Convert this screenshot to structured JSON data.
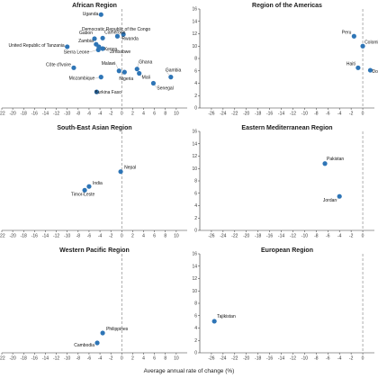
{
  "chart_data": [
    {
      "type": "scatter",
      "title": "African Region",
      "xlim": [
        -22,
        12
      ],
      "ylim": [
        0,
        16
      ],
      "xticks": [
        -22,
        -20,
        -18,
        -16,
        -14,
        -12,
        -10,
        -8,
        -6,
        -4,
        -2,
        0,
        2,
        4,
        6,
        8,
        10
      ],
      "yticks": [],
      "points": [
        {
          "label": "Uganda",
          "x": -3.8,
          "y": 15.1
        },
        {
          "label": "Democratic Republic of the Congo",
          "x": 0.3,
          "y": 11.9
        },
        {
          "label": "Gabon",
          "x": -5.0,
          "y": 11.2
        },
        {
          "label": "Cameroon",
          "x": -3.5,
          "y": 11.3
        },
        {
          "label": "Rwanda",
          "x": -0.8,
          "y": 11.6
        },
        {
          "label": "Zambia",
          "x": -4.7,
          "y": 10.3
        },
        {
          "label": "United Republic of Tanzania",
          "x": -10.0,
          "y": 9.9
        },
        {
          "label": "Kenya",
          "x": -4.2,
          "y": 9.9
        },
        {
          "label": "Sierra Leone",
          "x": -4.3,
          "y": 9.4
        },
        {
          "label": "Zimbabwe",
          "x": -3.5,
          "y": 9.6
        },
        {
          "label": "Côte d'Ivoire",
          "x": -8.8,
          "y": 6.5
        },
        {
          "label": "Malawi",
          "x": -0.5,
          "y": 6.0
        },
        {
          "label": "Ghana",
          "x": 2.8,
          "y": 6.3
        },
        {
          "label": "Mozambique",
          "x": -3.8,
          "y": 5.0
        },
        {
          "label": "Nigeria",
          "x": 0.5,
          "y": 5.8
        },
        {
          "label": "Mali",
          "x": 3.2,
          "y": 5.6
        },
        {
          "label": "Gambia",
          "x": 9.0,
          "y": 5.0
        },
        {
          "label": "Senegal",
          "x": 5.8,
          "y": 4.0
        },
        {
          "label": "Burkina Faso",
          "x": -4.6,
          "y": 2.6
        }
      ]
    },
    {
      "type": "scatter",
      "title": "Region of the Americas",
      "xlim": [
        -28,
        2
      ],
      "ylim": [
        0,
        16
      ],
      "xticks": [
        -26,
        -24,
        -22,
        -20,
        -18,
        -16,
        -14,
        -12,
        -10,
        -8,
        -6,
        -4,
        -2,
        0
      ],
      "yticks": [
        0,
        2,
        4,
        6,
        8,
        10,
        12,
        14,
        16
      ],
      "points": [
        {
          "label": "Peru",
          "x": -1.5,
          "y": 11.6
        },
        {
          "label": "Colombia",
          "x": 0.0,
          "y": 10.0
        },
        {
          "label": "Haiti",
          "x": -0.8,
          "y": 6.5
        },
        {
          "label": "Dominican Republic",
          "x": 1.3,
          "y": 6.1
        }
      ]
    },
    {
      "type": "scatter",
      "title": "South-East Asian Region",
      "xlim": [
        -22,
        12
      ],
      "ylim": [
        0,
        16
      ],
      "xticks": [
        -22,
        -20,
        -18,
        -16,
        -14,
        -12,
        -10,
        -8,
        -6,
        -4,
        -2,
        0,
        2,
        4,
        6,
        8,
        10
      ],
      "yticks": [],
      "points": [
        {
          "label": "Nepal",
          "x": -0.2,
          "y": 9.5
        },
        {
          "label": "India",
          "x": -6.0,
          "y": 7.1
        },
        {
          "label": "Timor-Leste",
          "x": -6.8,
          "y": 6.5
        }
      ]
    },
    {
      "type": "scatter",
      "title": "Eastern Mediterranean Region",
      "xlim": [
        -28,
        2
      ],
      "ylim": [
        0,
        16
      ],
      "xticks": [
        -26,
        -24,
        -22,
        -20,
        -18,
        -16,
        -14,
        -12,
        -10,
        -8,
        -6,
        -4,
        -2,
        0
      ],
      "yticks": [
        0,
        2,
        4,
        6,
        8,
        10,
        12,
        14,
        16
      ],
      "points": [
        {
          "label": "Pakistan",
          "x": -6.5,
          "y": 10.8
        },
        {
          "label": "Jordan",
          "x": -4.0,
          "y": 5.5
        }
      ]
    },
    {
      "type": "scatter",
      "title": "Western Pacific Region",
      "xlim": [
        -22,
        12
      ],
      "ylim": [
        0,
        16
      ],
      "xticks": [
        -22,
        -20,
        -18,
        -16,
        -14,
        -12,
        -10,
        -8,
        -6,
        -4,
        -2,
        0,
        2,
        4,
        6,
        8,
        10
      ],
      "yticks": [],
      "points": [
        {
          "label": "Philippines",
          "x": -3.5,
          "y": 3.2
        },
        {
          "label": "Cambodia",
          "x": -4.5,
          "y": 1.6
        }
      ]
    },
    {
      "type": "scatter",
      "title": "European Region",
      "xlim": [
        -28,
        2
      ],
      "ylim": [
        0,
        16
      ],
      "xticks": [
        -26,
        -24,
        -22,
        -20,
        -18,
        -16,
        -14,
        -12,
        -10,
        -8,
        -6,
        -4,
        -2,
        0
      ],
      "yticks": [
        0,
        2,
        4,
        6,
        8,
        10,
        12,
        14,
        16
      ],
      "points": [
        {
          "label": "Tajikistan",
          "x": -25.5,
          "y": 5.1
        }
      ]
    }
  ],
  "xlabel": "Average annual rate of change (%)",
  "colors": {
    "point": "#2e75b6",
    "refline": "#8c8c8c",
    "axis": "#333333",
    "leader": "#9a9a9a"
  }
}
